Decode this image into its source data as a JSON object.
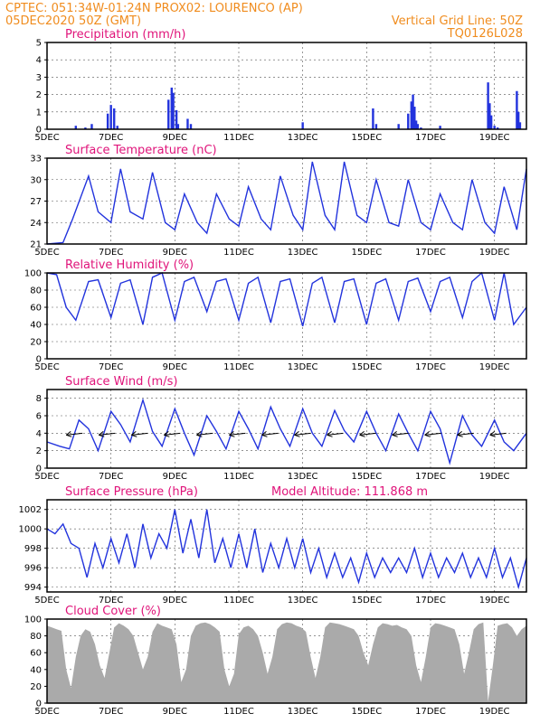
{
  "header": {
    "left_line1": "CPTEC:   051:34W-01:24N   PROX02: LOURENCO (AP)",
    "left_line2": "05DEC2020 50Z (GMT)",
    "right_line1": "Vertical Grid Line: 50Z",
    "right_line2": "TQ0126L028"
  },
  "colors": {
    "series": "#2233dd",
    "cloud": "#aaaaaa",
    "title": "#e0147a",
    "header": "#f08c1e"
  },
  "chart_data": [
    {
      "id": "precip",
      "type": "bar",
      "title": "Precipitation (mm/h)",
      "ylim": [
        0,
        5
      ],
      "yticks": [
        0,
        1,
        2,
        3,
        4,
        5
      ],
      "xticks": [
        "5DEC",
        "7DEC",
        "9DEC",
        "11DEC",
        "13DEC",
        "15DEC",
        "17DEC",
        "19DEC"
      ],
      "x_days_from_5dec": [
        0.9,
        1.2,
        1.4,
        1.9,
        2.0,
        2.1,
        2.2,
        3.8,
        3.9,
        3.95,
        4.05,
        4.1,
        4.4,
        4.5,
        8.0,
        10.2,
        10.3,
        11.0,
        11.3,
        11.4,
        11.45,
        11.5,
        11.55,
        11.6,
        11.7,
        12.3,
        13.8,
        13.85,
        13.9,
        14.0,
        14.1,
        14.7,
        14.75,
        14.8
      ],
      "values": [
        0.2,
        0.1,
        0.3,
        0.9,
        1.4,
        1.2,
        0.2,
        1.7,
        2.4,
        2.1,
        1.1,
        0.3,
        0.6,
        0.3,
        0.4,
        1.2,
        0.3,
        0.3,
        0.9,
        1.6,
        2.0,
        1.3,
        0.5,
        0.3,
        0.1,
        0.2,
        2.7,
        1.5,
        0.8,
        0.2,
        0.1,
        2.2,
        1.0,
        0.4
      ]
    },
    {
      "id": "temp",
      "type": "line",
      "title": "Surface Temperature (nC)",
      "ylim": [
        21,
        33
      ],
      "yticks": [
        21,
        24,
        27,
        30,
        33
      ],
      "xticks": [
        "5DEC",
        "7DEC",
        "9DEC",
        "11DEC",
        "13DEC",
        "15DEC",
        "17DEC",
        "19DEC"
      ],
      "x_days_from_5dec": [
        0,
        0.5,
        0.8,
        1.3,
        1.6,
        2.0,
        2.3,
        2.6,
        3.0,
        3.3,
        3.7,
        4.0,
        4.3,
        4.7,
        5.0,
        5.3,
        5.7,
        6.0,
        6.3,
        6.7,
        7.0,
        7.3,
        7.7,
        8.0,
        8.3,
        8.7,
        9.0,
        9.3,
        9.7,
        10.0,
        10.3,
        10.7,
        11.0,
        11.3,
        11.7,
        12.0,
        12.3,
        12.7,
        13.0,
        13.3,
        13.7,
        14.0,
        14.3,
        14.7,
        15.0
      ],
      "values": [
        21,
        21.2,
        24.5,
        30.5,
        25.5,
        24,
        31.5,
        25.5,
        24.5,
        31,
        24,
        23,
        28,
        24,
        22.5,
        28,
        24.5,
        23.5,
        29,
        24.5,
        23,
        30.5,
        25,
        23,
        32.5,
        25,
        23,
        32.5,
        25,
        24,
        30,
        24,
        23.5,
        30,
        24,
        23,
        28,
        24,
        23,
        30,
        24,
        22.5,
        29,
        23,
        31.5
      ]
    },
    {
      "id": "rh",
      "type": "line",
      "title": "Relative Humidity (%)",
      "ylim": [
        0,
        100
      ],
      "yticks": [
        0,
        20,
        40,
        60,
        80,
        100
      ],
      "xticks": [
        "5DEC",
        "7DEC",
        "9DEC",
        "11DEC",
        "13DEC",
        "15DEC",
        "17DEC",
        "19DEC"
      ],
      "x_days_from_5dec": [
        0,
        0.3,
        0.6,
        0.9,
        1.3,
        1.6,
        2.0,
        2.3,
        2.6,
        3.0,
        3.3,
        3.6,
        4.0,
        4.3,
        4.6,
        5.0,
        5.3,
        5.6,
        6.0,
        6.3,
        6.6,
        7.0,
        7.3,
        7.6,
        8.0,
        8.3,
        8.6,
        9.0,
        9.3,
        9.6,
        10.0,
        10.3,
        10.6,
        11.0,
        11.3,
        11.6,
        12.0,
        12.3,
        12.6,
        13.0,
        13.3,
        13.6,
        14.0,
        14.3,
        14.6,
        15.0
      ],
      "values": [
        100,
        98,
        60,
        45,
        90,
        92,
        48,
        88,
        92,
        40,
        95,
        100,
        45,
        90,
        95,
        55,
        90,
        93,
        45,
        88,
        95,
        42,
        90,
        93,
        38,
        88,
        95,
        42,
        90,
        93,
        40,
        88,
        93,
        45,
        90,
        94,
        55,
        90,
        95,
        48,
        90,
        100,
        45,
        100,
        40,
        60
      ]
    },
    {
      "id": "wind",
      "type": "line",
      "title": "Surface Wind (m/s)",
      "ylim": [
        0,
        9
      ],
      "yticks": [
        0,
        2,
        4,
        6,
        8
      ],
      "xticks": [
        "5DEC",
        "7DEC",
        "9DEC",
        "11DEC",
        "13DEC",
        "15DEC",
        "17DEC",
        "19DEC"
      ],
      "x_days_from_5dec": [
        0,
        0.4,
        0.7,
        1.0,
        1.3,
        1.6,
        2.0,
        2.3,
        2.6,
        3.0,
        3.3,
        3.6,
        4.0,
        4.3,
        4.6,
        5.0,
        5.3,
        5.6,
        6.0,
        6.3,
        6.6,
        7.0,
        7.3,
        7.6,
        8.0,
        8.3,
        8.6,
        9.0,
        9.3,
        9.6,
        10.0,
        10.3,
        10.6,
        11.0,
        11.3,
        11.6,
        12.0,
        12.3,
        12.6,
        13.0,
        13.3,
        13.6,
        14.0,
        14.3,
        14.6,
        15.0
      ],
      "values": [
        3,
        2.5,
        2.2,
        5.5,
        4.5,
        2,
        6.5,
        5,
        3,
        7.8,
        4.2,
        2.5,
        6.8,
        4,
        1.5,
        6,
        4.2,
        2.2,
        6.5,
        4.5,
        2.2,
        7,
        4.5,
        2.5,
        6.8,
        4,
        2.5,
        6.6,
        4.3,
        3,
        6.5,
        4,
        2,
        6.2,
        4,
        2,
        6.5,
        4.5,
        0.6,
        6,
        3.8,
        2.5,
        5.5,
        3,
        2,
        4
      ]
    },
    {
      "id": "pressure",
      "type": "line",
      "title": "Surface Pressure (hPa)",
      "annotation": "Model Altitude: 111.868  m",
      "ylim": [
        993.5,
        1003
      ],
      "yticks": [
        994,
        996,
        998,
        1000,
        1002
      ],
      "xticks": [
        "5DEC",
        "7DEC",
        "9DEC",
        "11DEC",
        "13DEC",
        "15DEC",
        "17DEC",
        "19DEC"
      ],
      "x_days_from_5dec": [
        0,
        0.25,
        0.5,
        0.75,
        1.0,
        1.25,
        1.5,
        1.75,
        2.0,
        2.25,
        2.5,
        2.75,
        3.0,
        3.25,
        3.5,
        3.75,
        4.0,
        4.25,
        4.5,
        4.75,
        5.0,
        5.25,
        5.5,
        5.75,
        6.0,
        6.25,
        6.5,
        6.75,
        7.0,
        7.25,
        7.5,
        7.75,
        8.0,
        8.25,
        8.5,
        8.75,
        9.0,
        9.25,
        9.5,
        9.75,
        10.0,
        10.25,
        10.5,
        10.75,
        11.0,
        11.25,
        11.5,
        11.75,
        12.0,
        12.25,
        12.5,
        12.75,
        13.0,
        13.25,
        13.5,
        13.75,
        14.0,
        14.25,
        14.5,
        14.75,
        15.0
      ],
      "values": [
        1000,
        999.5,
        1000.5,
        998.5,
        998,
        995,
        998.5,
        996,
        999,
        996.5,
        999.5,
        996,
        1000.5,
        997,
        999.5,
        998,
        1002,
        997.5,
        1001,
        997,
        1002,
        996.5,
        999,
        996,
        999.5,
        996,
        1000,
        995.5,
        998.5,
        996,
        999,
        996,
        999,
        995.5,
        998,
        995,
        997.5,
        995,
        997,
        994.5,
        997.5,
        995,
        997,
        995.5,
        997,
        995.5,
        998,
        995,
        997.5,
        995,
        997,
        995.5,
        997.5,
        995,
        997,
        995,
        998,
        995,
        997,
        994,
        997
      ]
    },
    {
      "id": "cloud",
      "type": "area",
      "title": "Cloud Cover (%)",
      "ylim": [
        0,
        100
      ],
      "yticks": [
        0,
        20,
        40,
        60,
        80,
        100
      ],
      "xticks": [
        "5DEC",
        "7DEC",
        "9DEC",
        "11DEC",
        "13DEC",
        "15DEC",
        "17DEC",
        "19DEC"
      ],
      "x_days_from_5dec": [
        0,
        0.15,
        0.3,
        0.45,
        0.6,
        0.75,
        0.9,
        1.05,
        1.2,
        1.35,
        1.5,
        1.65,
        1.8,
        1.95,
        2.1,
        2.25,
        2.4,
        2.55,
        2.7,
        2.85,
        3.0,
        3.15,
        3.3,
        3.45,
        3.6,
        3.75,
        3.9,
        4.05,
        4.2,
        4.35,
        4.5,
        4.65,
        4.8,
        4.95,
        5.1,
        5.25,
        5.4,
        5.55,
        5.7,
        5.85,
        6.0,
        6.15,
        6.3,
        6.45,
        6.6,
        6.75,
        6.9,
        7.05,
        7.2,
        7.35,
        7.5,
        7.65,
        7.8,
        7.95,
        8.1,
        8.25,
        8.4,
        8.55,
        8.7,
        8.85,
        9.0,
        9.15,
        9.3,
        9.45,
        9.6,
        9.75,
        9.9,
        10.05,
        10.2,
        10.35,
        10.5,
        10.65,
        10.8,
        10.95,
        11.1,
        11.25,
        11.4,
        11.55,
        11.7,
        11.85,
        12.0,
        12.15,
        12.3,
        12.45,
        12.6,
        12.75,
        12.9,
        13.05,
        13.2,
        13.35,
        13.5,
        13.65,
        13.8,
        13.95,
        14.1,
        14.25,
        14.4,
        14.55,
        14.7,
        14.85,
        15.0
      ],
      "values": [
        92,
        90,
        88,
        86,
        40,
        18,
        55,
        80,
        88,
        85,
        70,
        45,
        30,
        60,
        90,
        95,
        92,
        88,
        80,
        60,
        40,
        55,
        85,
        95,
        92,
        90,
        88,
        70,
        25,
        40,
        80,
        92,
        95,
        96,
        94,
        90,
        85,
        40,
        20,
        35,
        82,
        90,
        92,
        88,
        80,
        60,
        35,
        55,
        88,
        94,
        96,
        95,
        92,
        90,
        85,
        55,
        30,
        55,
        90,
        96,
        95,
        94,
        92,
        90,
        88,
        80,
        60,
        45,
        70,
        90,
        95,
        94,
        92,
        93,
        90,
        88,
        80,
        45,
        25,
        55,
        90,
        95,
        94,
        92,
        90,
        88,
        70,
        35,
        60,
        88,
        94,
        96,
        2,
        45,
        92,
        94,
        95,
        90,
        80,
        88,
        92
      ]
    }
  ]
}
